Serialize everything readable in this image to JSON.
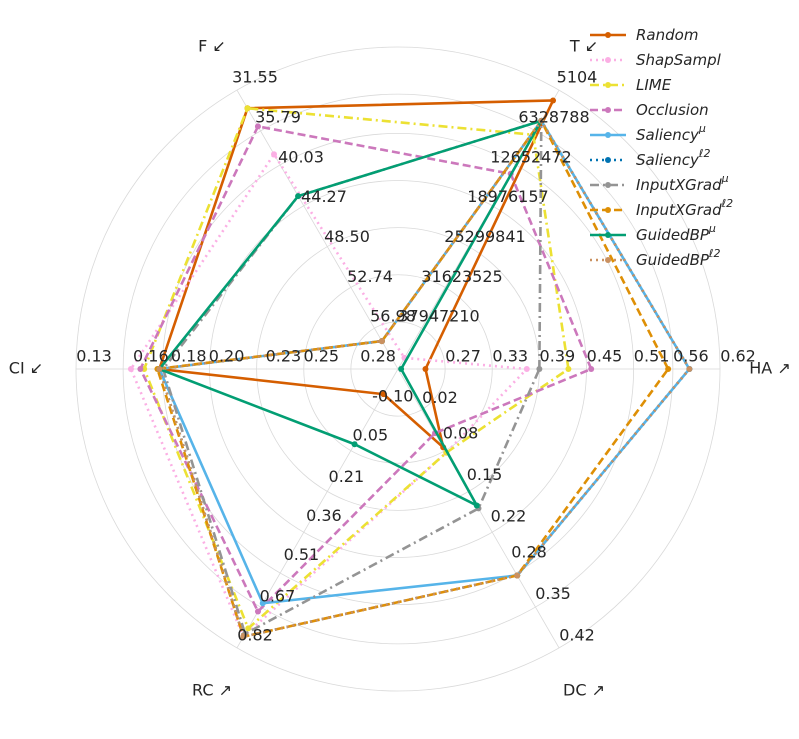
{
  "chart_data": {
    "type": "radar",
    "axes": [
      {
        "label": "HA ↗",
        "lim": [
          0.21,
          0.62
        ],
        "ticks": [
          0.27,
          0.33,
          0.39,
          0.45,
          0.51,
          0.56,
          0.62
        ]
      },
      {
        "label": "T ↙",
        "lim": [
          44270894,
          5104
        ],
        "ticks": [
          37947210,
          31623525,
          25299841,
          18976157,
          12652472,
          6328788,
          5104
        ]
      },
      {
        "label": "F ↙",
        "lim": [
          61.22,
          31.55
        ],
        "ticks": [
          56.98,
          52.74,
          {
            "value": 48.5,
            "label": "48.50"
          },
          44.27,
          40.03,
          35.79,
          31.55
        ]
      },
      {
        "label": "CI ↙",
        "lim": [
          0.3,
          0.13
        ],
        "ticks": [
          0.28,
          0.25,
          0.23,
          {
            "value": 0.2,
            "label": "0.20"
          },
          0.18,
          0.16,
          0.13
        ]
      },
      {
        "label": "RC ↗",
        "lim": [
          -0.255,
          0.82
        ],
        "ticks": [
          {
            "value": -0.1,
            "label": "-0.10"
          },
          0.05,
          0.21,
          0.36,
          0.51,
          0.67,
          0.82
        ]
      },
      {
        "label": "DC ↗",
        "lim": [
          -0.05,
          0.42
        ],
        "ticks": [
          0.02,
          0.08,
          0.15,
          0.22,
          0.28,
          0.35,
          0.42
        ]
      }
    ],
    "legend": "upper right",
    "series": [
      {
        "name": "Random",
        "color": "#d55e00",
        "dash": "solid",
        "values": [
          0.245,
          1642938,
          33.48,
          0.174,
          -0.158,
          0.082
        ]
      },
      {
        "name": "ShapSampl",
        "color": "#fbafe4",
        "dash": "dotted",
        "values": [
          0.374,
          42500262,
          38.37,
          0.159,
          0.777,
          0.091
        ]
      },
      {
        "name": "LIME",
        "color": "#ece133",
        "dash": "dashdot",
        "values": [
          0.427,
          7087630,
          33.48,
          0.166,
          0.745,
          0.091
        ]
      },
      {
        "name": "Occlusion",
        "color": "#cc78bc",
        "dash": "dashed",
        "values": [
          0.456,
          13284841,
          35.41,
          0.164,
          0.68,
          0.058
        ]
      },
      {
        "name": "Saliency",
        "superscript": "μ",
        "color": "#56b4e9",
        "dash": "solid",
        "values": [
          0.581,
          4874341,
          58.25,
          0.174,
          0.648,
          0.298
        ]
      },
      {
        "name": "Saliency",
        "superscript": "ℓ2",
        "color": "#0173b2",
        "dash": "dotted",
        "values": [
          0.581,
          4874341,
          58.25,
          0.174,
          0.777,
          0.298
        ]
      },
      {
        "name": "InputXGrad",
        "superscript": "μ",
        "color": "#949494",
        "dash": "dashdot",
        "values": [
          0.39,
          4874341,
          42.82,
          0.176,
          0.766,
          0.185
        ]
      },
      {
        "name": "InputXGrad",
        "superscript": "ℓ2",
        "color": "#de8f05",
        "dash": "dashed",
        "values": [
          0.554,
          4874341,
          58.25,
          0.173,
          0.777,
          0.298
        ]
      },
      {
        "name": "GuidedBP",
        "superscript": "μ",
        "color": "#029e73",
        "dash": "solid",
        "values": [
          0.214,
          4874341,
          42.82,
          0.174,
          0.035,
          0.18
        ]
      },
      {
        "name": "GuidedBP",
        "superscript": "ℓ2",
        "color": "#ca9161",
        "dash": "dotted",
        "values": [
          0.581,
          4874341,
          58.25,
          0.174,
          0.777,
          0.298
        ]
      }
    ]
  }
}
